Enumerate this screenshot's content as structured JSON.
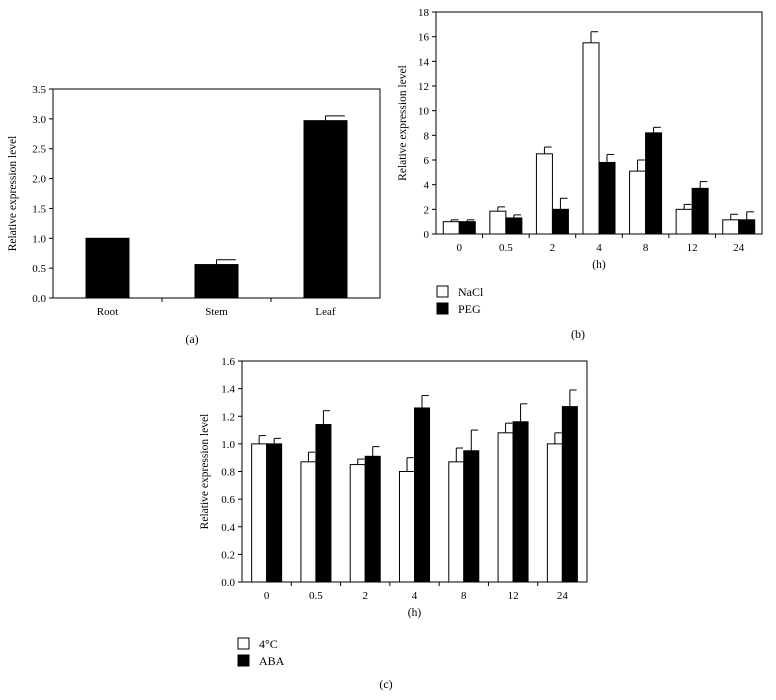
{
  "chart_data": [
    {
      "id": "a",
      "type": "bar",
      "panel_label": "(a)",
      "ylabel": "Relative expression level",
      "xlabel": "",
      "ylim": [
        0,
        3.5
      ],
      "y_ticks": [
        "0.0",
        "0.5",
        "1.0",
        "1.5",
        "2.0",
        "2.5",
        "3.0",
        "3.5"
      ],
      "categories": [
        "Root",
        "Stem",
        "Leaf"
      ],
      "series": [
        {
          "fill": "#000000",
          "values": [
            1.0,
            0.56,
            2.97
          ],
          "errors": [
            0.0,
            0.08,
            0.08
          ]
        }
      ],
      "grid": false,
      "legend": null
    },
    {
      "id": "b",
      "type": "bar",
      "panel_label": "(b)",
      "ylabel": "Relative expression level",
      "xlabel": "(h)",
      "ylim": [
        0,
        18
      ],
      "y_ticks": [
        "0",
        "2",
        "4",
        "6",
        "8",
        "10",
        "12",
        "14",
        "16",
        "18"
      ],
      "categories": [
        "0",
        "0.5",
        "2",
        "4",
        "8",
        "12",
        "24"
      ],
      "series": [
        {
          "name": "NaCl",
          "fill": "#ffffff",
          "values": [
            1.0,
            1.85,
            6.5,
            15.5,
            5.1,
            2.0,
            1.15
          ],
          "errors": [
            0.15,
            0.35,
            0.55,
            0.9,
            0.9,
            0.4,
            0.45
          ]
        },
        {
          "name": "PEG",
          "fill": "#000000",
          "values": [
            1.0,
            1.3,
            2.0,
            5.8,
            8.2,
            3.7,
            1.15
          ],
          "errors": [
            0.15,
            0.25,
            0.9,
            0.65,
            0.45,
            0.55,
            0.65
          ]
        }
      ],
      "grid": false,
      "legend": "bottom-left"
    },
    {
      "id": "c",
      "type": "bar",
      "panel_label": "(c)",
      "ylabel": "Relative expression level",
      "xlabel": "(h)",
      "ylim": [
        0,
        1.6
      ],
      "y_ticks": [
        "0.0",
        "0.2",
        "0.4",
        "0.6",
        "0.8",
        "1.0",
        "1.2",
        "1.4",
        "1.6"
      ],
      "categories": [
        "0",
        "0.5",
        "2",
        "4",
        "8",
        "12",
        "24"
      ],
      "series": [
        {
          "name": "4°C",
          "fill": "#ffffff",
          "values": [
            1.0,
            0.87,
            0.85,
            0.8,
            0.87,
            1.08,
            1.0
          ],
          "errors": [
            0.06,
            0.07,
            0.04,
            0.1,
            0.1,
            0.07,
            0.08
          ]
        },
        {
          "name": "ABA",
          "fill": "#000000",
          "values": [
            1.0,
            1.14,
            0.91,
            1.26,
            0.95,
            1.16,
            1.27
          ],
          "errors": [
            0.04,
            0.1,
            0.07,
            0.09,
            0.15,
            0.13,
            0.12
          ]
        }
      ],
      "grid": false,
      "legend": "bottom-left"
    }
  ]
}
